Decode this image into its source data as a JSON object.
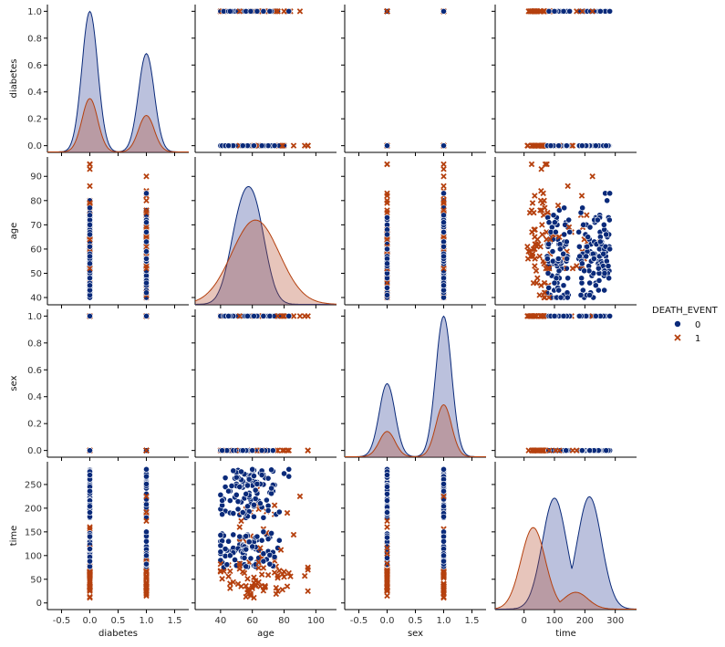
{
  "chart_data": {
    "type": "scatter",
    "subtype": "pairplot",
    "variables": [
      "diabetes",
      "age",
      "sex",
      "time"
    ],
    "hue": {
      "title": "DEATH_EVENT",
      "levels": [
        {
          "label": "0",
          "marker": "circle",
          "color": "#0a2a7a"
        },
        {
          "label": "1",
          "marker": "x",
          "color": "#b5400e"
        }
      ]
    },
    "axes": {
      "diabetes": {
        "xlim": [
          -0.75,
          1.75
        ],
        "ylim": [
          -0.05,
          1.05
        ],
        "xticks": [
          "-0.5",
          "0.0",
          "0.5",
          "1.0",
          "1.5"
        ],
        "xtick_values": [
          -0.5,
          0.0,
          0.5,
          1.0,
          1.5
        ],
        "yticks": [
          "0.0",
          "0.2",
          "0.4",
          "0.6",
          "0.8",
          "1.0"
        ],
        "ytick_values": [
          0,
          0.2,
          0.4,
          0.6,
          0.8,
          1.0
        ]
      },
      "age": {
        "xlim": [
          24,
          113
        ],
        "ylim": [
          37,
          98
        ],
        "xticks": [
          "40",
          "60",
          "80",
          "100"
        ],
        "xtick_values": [
          40,
          60,
          80,
          100
        ],
        "yticks": [
          "40",
          "50",
          "60",
          "70",
          "80",
          "90"
        ],
        "ytick_values": [
          40,
          50,
          60,
          70,
          80,
          90
        ]
      },
      "sex": {
        "xlim": [
          -0.75,
          1.75
        ],
        "ylim": [
          -0.05,
          1.05
        ],
        "xticks": [
          "-0.5",
          "0.0",
          "0.5",
          "1.0",
          "1.5"
        ],
        "xtick_values": [
          -0.5,
          0.0,
          0.5,
          1.0,
          1.5
        ],
        "yticks": [
          "0.0",
          "0.2",
          "0.4",
          "0.6",
          "0.8",
          "1.0"
        ],
        "ytick_values": [
          0,
          0.2,
          0.4,
          0.6,
          0.8,
          1.0
        ]
      },
      "time": {
        "xlim": [
          -95,
          370
        ],
        "ylim": [
          -14,
          298
        ],
        "xticks": [
          "0",
          "100",
          "200",
          "300"
        ],
        "xtick_values": [
          0,
          100,
          200,
          300
        ],
        "yticks": [
          "0",
          "50",
          "100",
          "150",
          "200",
          "250"
        ],
        "ytick_values": [
          0,
          50,
          100,
          150,
          200,
          250
        ]
      }
    },
    "density_peaks": {
      "diabetes": {
        "0": [
          [
            0,
            1.0
          ],
          [
            1,
            0.7
          ]
        ],
        "1": [
          [
            0,
            0.38
          ],
          [
            1,
            0.26
          ]
        ]
      },
      "age": {
        "0": [
          [
            52,
            0.85
          ],
          [
            62,
            0.95
          ]
        ],
        "1": [
          [
            62,
            0.6
          ]
        ]
      },
      "sex": {
        "0": [
          [
            0,
            0.52
          ],
          [
            1,
            1.0
          ]
        ],
        "1": [
          [
            0,
            0.18
          ],
          [
            1,
            0.37
          ]
        ]
      },
      "time": {
        "0": [
          [
            100,
            0.79
          ],
          [
            215,
            0.8
          ]
        ],
        "1": [
          [
            30,
            0.58
          ],
          [
            170,
            0.12
          ]
        ]
      }
    }
  }
}
